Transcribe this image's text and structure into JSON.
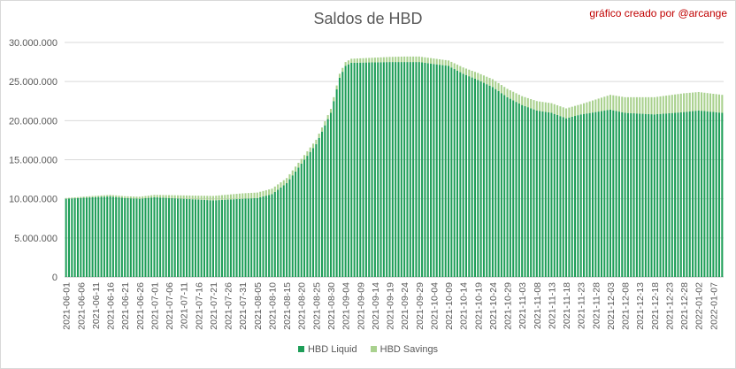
{
  "chart_data": {
    "type": "bar",
    "stacked": true,
    "title": "Saldos de HBD",
    "credit": "gráfico creado por @arcange",
    "ylim": [
      0,
      30000000
    ],
    "yticks": [
      "0",
      "5.000.000",
      "10.000.000",
      "15.000.000",
      "20.000.000",
      "25.000.000",
      "30.000.000"
    ],
    "grid": true,
    "legend_position": "bottom",
    "start_date": "2021-06-01",
    "end_date": "2022-01-10",
    "x_tick_labels": [
      "2021-06-01",
      "2021-06-06",
      "2021-06-11",
      "2021-06-16",
      "2021-06-21",
      "2021-06-26",
      "2021-07-01",
      "2021-07-06",
      "2021-07-11",
      "2021-07-16",
      "2021-07-21",
      "2021-07-26",
      "2021-07-31",
      "2021-08-05",
      "2021-08-10",
      "2021-08-15",
      "2021-08-20",
      "2021-08-25",
      "2021-08-30",
      "2021-09-04",
      "2021-09-09",
      "2021-09-14",
      "2021-09-19",
      "2021-09-24",
      "2021-09-29",
      "2021-10-04",
      "2021-10-09",
      "2021-10-14",
      "2021-10-19",
      "2021-10-24",
      "2021-10-29",
      "2021-11-03",
      "2021-11-08",
      "2021-11-13",
      "2021-11-18",
      "2021-11-23",
      "2021-11-28",
      "2021-12-03",
      "2021-12-08",
      "2021-12-13",
      "2021-12-18",
      "2021-12-23",
      "2021-12-28",
      "2022-01-02",
      "2022-01-07"
    ],
    "series": [
      {
        "name": "HBD Liquid",
        "color": "#1e9e58",
        "anchor_values": [
          [
            "2021-06-01",
            10000000
          ],
          [
            "2021-06-10",
            10200000
          ],
          [
            "2021-06-16",
            10300000
          ],
          [
            "2021-06-21",
            10100000
          ],
          [
            "2021-06-26",
            10000000
          ],
          [
            "2021-07-01",
            10200000
          ],
          [
            "2021-07-11",
            10000000
          ],
          [
            "2021-07-21",
            9800000
          ],
          [
            "2021-07-31",
            10000000
          ],
          [
            "2021-08-05",
            10100000
          ],
          [
            "2021-08-10",
            10600000
          ],
          [
            "2021-08-15",
            12000000
          ],
          [
            "2021-08-20",
            14500000
          ],
          [
            "2021-08-25",
            17000000
          ],
          [
            "2021-08-30",
            21000000
          ],
          [
            "2021-09-02",
            25500000
          ],
          [
            "2021-09-04",
            27000000
          ],
          [
            "2021-09-06",
            27400000
          ],
          [
            "2021-09-19",
            27500000
          ],
          [
            "2021-09-29",
            27500000
          ],
          [
            "2021-10-09",
            27000000
          ],
          [
            "2021-10-14",
            26000000
          ],
          [
            "2021-10-19",
            25200000
          ],
          [
            "2021-10-24",
            24300000
          ],
          [
            "2021-10-29",
            23000000
          ],
          [
            "2021-11-03",
            22000000
          ],
          [
            "2021-11-08",
            21300000
          ],
          [
            "2021-11-13",
            21000000
          ],
          [
            "2021-11-18",
            20300000
          ],
          [
            "2021-11-23",
            20800000
          ],
          [
            "2021-11-28",
            21100000
          ],
          [
            "2021-12-03",
            21400000
          ],
          [
            "2021-12-08",
            21000000
          ],
          [
            "2021-12-18",
            20800000
          ],
          [
            "2021-12-28",
            21100000
          ],
          [
            "2022-01-02",
            21300000
          ],
          [
            "2022-01-10",
            21000000
          ]
        ]
      },
      {
        "name": "HBD Savings",
        "color": "#a9d18e",
        "anchor_values": [
          [
            "2021-06-01",
            100000
          ],
          [
            "2021-07-01",
            300000
          ],
          [
            "2021-07-31",
            700000
          ],
          [
            "2021-08-10",
            700000
          ],
          [
            "2021-08-30",
            500000
          ],
          [
            "2021-09-04",
            500000
          ],
          [
            "2021-09-24",
            700000
          ],
          [
            "2021-10-09",
            700000
          ],
          [
            "2021-10-24",
            1000000
          ],
          [
            "2021-11-08",
            1200000
          ],
          [
            "2021-11-23",
            1300000
          ],
          [
            "2021-12-03",
            1900000
          ],
          [
            "2021-12-28",
            2400000
          ],
          [
            "2022-01-10",
            2300000
          ]
        ]
      }
    ]
  }
}
